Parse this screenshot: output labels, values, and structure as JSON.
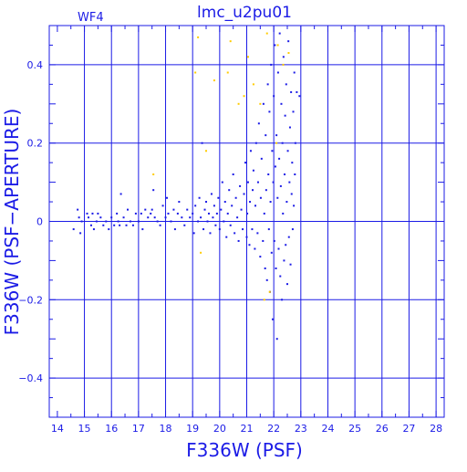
{
  "chart_data": {
    "type": "scatter",
    "title": "lmc_u2pu01",
    "panel_label": "WF4",
    "xlabel": "F336W (PSF)",
    "ylabel": "F336W (PSF−APERTURE)",
    "xlim": [
      13.7,
      28.3
    ],
    "ylim": [
      -0.5,
      0.5
    ],
    "x_ticks": [
      14,
      15,
      16,
      17,
      18,
      19,
      20,
      21,
      22,
      23,
      24,
      25,
      26,
      27,
      28
    ],
    "x_tick_labels": [
      "14",
      "15",
      "16",
      "17",
      "18",
      "19",
      "20",
      "21",
      "22",
      "23",
      "24",
      "25",
      "26",
      "27",
      "28"
    ],
    "y_ticks": [
      -0.4,
      -0.2,
      0,
      0.2,
      0.4
    ],
    "y_tick_labels": [
      "−0.4",
      "−0.2",
      "0",
      "0.2",
      "0.4"
    ],
    "x_gridlines": [
      15,
      16,
      17,
      18,
      19,
      20,
      21,
      22,
      23,
      24,
      25,
      26,
      27,
      28
    ],
    "y_gridlines": [
      -0.4,
      -0.2,
      0,
      0.2,
      0.4
    ],
    "grid": true,
    "colors": {
      "axes": "#1b1be6",
      "primary": "#1b1be6",
      "rejected": "#ffcc00"
    },
    "series": [
      {
        "color": "#1b1be6",
        "points": [
          [
            14.6,
            -0.02
          ],
          [
            14.75,
            0.03
          ],
          [
            14.8,
            0.01
          ],
          [
            14.85,
            -0.03
          ],
          [
            14.9,
            0.0
          ],
          [
            15.1,
            0.02
          ],
          [
            15.15,
            0.01
          ],
          [
            15.25,
            -0.01
          ],
          [
            15.3,
            0.02
          ],
          [
            15.35,
            -0.02
          ],
          [
            15.45,
            0.0
          ],
          [
            15.5,
            0.02
          ],
          [
            15.6,
            0.01
          ],
          [
            15.7,
            -0.01
          ],
          [
            15.8,
            0.0
          ],
          [
            15.9,
            -0.02
          ],
          [
            16.0,
            0.01
          ],
          [
            16.1,
            -0.01
          ],
          [
            16.2,
            0.02
          ],
          [
            16.25,
            0.0
          ],
          [
            16.3,
            -0.01
          ],
          [
            16.35,
            0.07
          ],
          [
            16.45,
            0.01
          ],
          [
            16.55,
            -0.01
          ],
          [
            16.6,
            0.03
          ],
          [
            16.7,
            0.0
          ],
          [
            16.8,
            -0.01
          ],
          [
            16.9,
            0.02
          ],
          [
            17.0,
            0.0
          ],
          [
            17.1,
            0.02
          ],
          [
            17.15,
            -0.02
          ],
          [
            17.25,
            0.03
          ],
          [
            17.35,
            0.01
          ],
          [
            17.45,
            0.02
          ],
          [
            17.5,
            0.03
          ],
          [
            17.55,
            0.08
          ],
          [
            17.6,
            0.01
          ],
          [
            17.7,
            0.0
          ],
          [
            17.8,
            -0.01
          ],
          [
            17.9,
            0.04
          ],
          [
            18.0,
            0.01
          ],
          [
            18.05,
            0.06
          ],
          [
            18.1,
            0.02
          ],
          [
            18.2,
            0.0
          ],
          [
            18.3,
            0.03
          ],
          [
            18.35,
            -0.02
          ],
          [
            18.45,
            0.02
          ],
          [
            18.5,
            0.05
          ],
          [
            18.6,
            0.01
          ],
          [
            18.7,
            -0.01
          ],
          [
            18.8,
            0.03
          ],
          [
            18.9,
            0.01
          ],
          [
            19.0,
            0.02
          ],
          [
            19.05,
            -0.03
          ],
          [
            19.1,
            0.04
          ],
          [
            19.2,
            0.0
          ],
          [
            19.25,
            0.06
          ],
          [
            19.3,
            0.01
          ],
          [
            19.35,
            0.2
          ],
          [
            19.4,
            -0.02
          ],
          [
            19.45,
            0.03
          ],
          [
            19.5,
            0.05
          ],
          [
            19.55,
            0.0
          ],
          [
            19.6,
            0.02
          ],
          [
            19.65,
            -0.03
          ],
          [
            19.7,
            0.07
          ],
          [
            19.75,
            0.01
          ],
          [
            19.8,
            0.04
          ],
          [
            19.85,
            -0.01
          ],
          [
            19.9,
            0.02
          ],
          [
            19.95,
            0.06
          ],
          [
            20.0,
            -0.02
          ],
          [
            20.05,
            0.03
          ],
          [
            20.1,
            0.1
          ],
          [
            20.15,
            0.0
          ],
          [
            20.2,
            0.05
          ],
          [
            20.25,
            -0.04
          ],
          [
            20.3,
            0.02
          ],
          [
            20.35,
            0.08
          ],
          [
            20.4,
            -0.01
          ],
          [
            20.45,
            0.04
          ],
          [
            20.5,
            0.12
          ],
          [
            20.55,
            -0.03
          ],
          [
            20.6,
            0.06
          ],
          [
            20.65,
            0.01
          ],
          [
            20.7,
            -0.05
          ],
          [
            20.75,
            0.09
          ],
          [
            20.8,
            0.03
          ],
          [
            20.85,
            -0.02
          ],
          [
            20.9,
            0.07
          ],
          [
            20.95,
            0.15
          ],
          [
            21.0,
            -0.04
          ],
          [
            21.02,
            0.02
          ],
          [
            21.05,
            0.1
          ],
          [
            21.1,
            -0.06
          ],
          [
            21.12,
            0.05
          ],
          [
            21.15,
            0.18
          ],
          [
            21.2,
            -0.02
          ],
          [
            21.22,
            0.08
          ],
          [
            21.25,
            0.13
          ],
          [
            21.3,
            -0.07
          ],
          [
            21.32,
            0.04
          ],
          [
            21.35,
            0.2
          ],
          [
            21.4,
            -0.03
          ],
          [
            21.42,
            0.1
          ],
          [
            21.45,
            0.25
          ],
          [
            21.5,
            -0.09
          ],
          [
            21.52,
            0.06
          ],
          [
            21.55,
            0.16
          ],
          [
            21.6,
            -0.05
          ],
          [
            21.62,
            0.3
          ],
          [
            21.65,
            0.02
          ],
          [
            21.68,
            -0.12
          ],
          [
            21.7,
            0.22
          ],
          [
            21.72,
            0.08
          ],
          [
            21.75,
            -0.15
          ],
          [
            21.78,
            0.35
          ],
          [
            21.8,
            0.12
          ],
          [
            21.82,
            -0.02
          ],
          [
            21.84,
            0.28
          ],
          [
            21.86,
            -0.18
          ],
          [
            21.88,
            0.05
          ],
          [
            21.9,
            0.4
          ],
          [
            21.92,
            -0.08
          ],
          [
            21.94,
            0.18
          ],
          [
            21.96,
            -0.25
          ],
          [
            21.98,
            0.1
          ],
          [
            22.0,
            0.32
          ],
          [
            22.02,
            -0.05
          ],
          [
            22.04,
            0.45
          ],
          [
            22.06,
            0.14
          ],
          [
            22.08,
            -0.12
          ],
          [
            22.1,
            0.22
          ],
          [
            22.12,
            -0.3
          ],
          [
            22.14,
            0.06
          ],
          [
            22.16,
            0.38
          ],
          [
            22.18,
            -0.07
          ],
          [
            22.2,
            0.16
          ],
          [
            22.22,
            0.48
          ],
          [
            22.24,
            -0.14
          ],
          [
            22.26,
            0.09
          ],
          [
            22.28,
            0.3
          ],
          [
            22.3,
            -0.2
          ],
          [
            22.32,
            0.2
          ],
          [
            22.34,
            0.02
          ],
          [
            22.36,
            0.42
          ],
          [
            22.38,
            -0.1
          ],
          [
            22.4,
            0.12
          ],
          [
            22.42,
            0.27
          ],
          [
            22.44,
            -0.06
          ],
          [
            22.46,
            0.35
          ],
          [
            22.48,
            0.05
          ],
          [
            22.5,
            -0.16
          ],
          [
            22.52,
            0.18
          ],
          [
            22.54,
            0.46
          ],
          [
            22.56,
            -0.04
          ],
          [
            22.58,
            0.1
          ],
          [
            22.6,
            0.24
          ],
          [
            22.62,
            -0.11
          ],
          [
            22.64,
            0.33
          ],
          [
            22.66,
            0.07
          ],
          [
            22.68,
            0.15
          ],
          [
            22.7,
            -0.02
          ],
          [
            22.72,
            0.28
          ],
          [
            22.74,
            0.04
          ],
          [
            22.76,
            0.38
          ],
          [
            22.78,
            0.12
          ],
          [
            22.8,
            0.2
          ],
          [
            22.85,
            0.33
          ],
          [
            22.95,
            0.32
          ]
        ]
      },
      {
        "color": "#ffcc00",
        "points": [
          [
            17.55,
            0.12
          ],
          [
            19.1,
            0.38
          ],
          [
            19.2,
            0.47
          ],
          [
            19.3,
            -0.08
          ],
          [
            19.5,
            0.18
          ],
          [
            19.8,
            0.36
          ],
          [
            20.3,
            0.38
          ],
          [
            20.4,
            0.46
          ],
          [
            20.7,
            0.3
          ],
          [
            20.9,
            0.32
          ],
          [
            21.05,
            0.42
          ],
          [
            21.25,
            0.35
          ],
          [
            21.5,
            0.3
          ],
          [
            21.75,
            0.48
          ],
          [
            22.15,
            0.45
          ],
          [
            22.35,
            0.4
          ],
          [
            22.55,
            0.43
          ],
          [
            21.85,
            -0.18
          ],
          [
            21.65,
            -0.2
          ],
          [
            22.1,
            0.2
          ]
        ]
      }
    ]
  }
}
